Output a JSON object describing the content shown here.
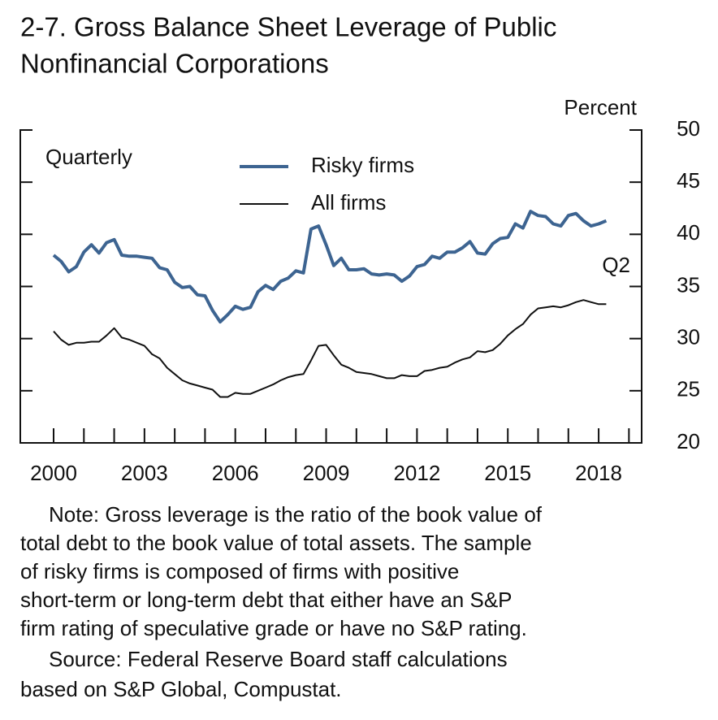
{
  "chart_data": {
    "type": "line",
    "title": [
      "2-7. Gross Balance Sheet Leverage of Public",
      "Nonfinancial Corporations"
    ],
    "y_axis_label": "Percent",
    "annotations": {
      "frequency": "Quarterly",
      "last_point": "Q2"
    },
    "legend": "upper center",
    "x": [
      2000,
      2000.25,
      2000.5,
      2000.75,
      2001,
      2001.25,
      2001.5,
      2001.75,
      2002,
      2002.25,
      2002.5,
      2002.75,
      2003,
      2003.25,
      2003.5,
      2003.75,
      2004,
      2004.25,
      2004.5,
      2004.75,
      2005,
      2005.25,
      2005.5,
      2005.75,
      2006,
      2006.25,
      2006.5,
      2006.75,
      2007,
      2007.25,
      2007.5,
      2007.75,
      2008,
      2008.25,
      2008.5,
      2008.75,
      2009,
      2009.25,
      2009.5,
      2009.75,
      2010,
      2010.25,
      2010.5,
      2010.75,
      2011,
      2011.25,
      2011.5,
      2011.75,
      2012,
      2012.25,
      2012.5,
      2012.75,
      2013,
      2013.25,
      2013.5,
      2013.75,
      2014,
      2014.25,
      2014.5,
      2014.75,
      2015,
      2015.25,
      2015.5,
      2015.75,
      2016,
      2016.25,
      2016.5,
      2016.75,
      2017,
      2017.25,
      2017.5,
      2017.75,
      2018,
      2018.25
    ],
    "series": [
      {
        "name": "Risky firms",
        "color": "#3d6491",
        "width": 4,
        "values": [
          38.0,
          37.4,
          36.4,
          36.9,
          38.3,
          39.0,
          38.2,
          39.2,
          39.5,
          38.0,
          37.9,
          37.9,
          37.8,
          37.7,
          36.8,
          36.6,
          35.4,
          34.9,
          35.0,
          34.2,
          34.1,
          32.7,
          31.6,
          32.3,
          33.1,
          32.8,
          33.0,
          34.5,
          35.1,
          34.7,
          35.5,
          35.8,
          36.5,
          36.3,
          40.5,
          40.8,
          39.0,
          37.0,
          37.7,
          36.6,
          36.6,
          36.7,
          36.2,
          36.1,
          36.2,
          36.1,
          35.5,
          36.0,
          36.9,
          37.1,
          37.9,
          37.7,
          38.3,
          38.3,
          38.7,
          39.3,
          38.2,
          38.1,
          39.1,
          39.6,
          39.7,
          41.0,
          40.6,
          42.2,
          41.8,
          41.7,
          41.0,
          40.8,
          41.8,
          42.0,
          41.3,
          40.8,
          41.0,
          41.3
        ]
      },
      {
        "name": "All firms",
        "color": "#111111",
        "width": 2,
        "values": [
          30.7,
          29.9,
          29.4,
          29.6,
          29.6,
          29.7,
          29.7,
          30.3,
          31.0,
          30.1,
          29.9,
          29.6,
          29.3,
          28.5,
          28.1,
          27.2,
          26.6,
          26.0,
          25.7,
          25.5,
          25.3,
          25.1,
          24.4,
          24.4,
          24.8,
          24.7,
          24.7,
          25.0,
          25.3,
          25.6,
          26.0,
          26.3,
          26.5,
          26.6,
          27.9,
          29.3,
          29.4,
          28.4,
          27.5,
          27.2,
          26.8,
          26.7,
          26.6,
          26.4,
          26.2,
          26.2,
          26.5,
          26.4,
          26.4,
          26.9,
          27.0,
          27.2,
          27.3,
          27.7,
          28.0,
          28.2,
          28.8,
          28.7,
          28.9,
          29.5,
          30.3,
          30.9,
          31.4,
          32.3,
          32.9,
          33.0,
          33.1,
          33.0,
          33.2,
          33.5,
          33.7,
          33.5,
          33.3,
          33.3
        ]
      }
    ],
    "xlim": [
      1998.9,
      2019.42
    ],
    "xticks": [
      2000,
      2003,
      2006,
      2009,
      2012,
      2015,
      2018
    ],
    "xminorticks": [
      2000,
      2001,
      2002,
      2003,
      2004,
      2005,
      2006,
      2007,
      2008,
      2009,
      2010,
      2011,
      2012,
      2013,
      2014,
      2015,
      2016,
      2017,
      2018,
      2019
    ],
    "ylim": [
      20,
      50
    ],
    "yticks": [
      20,
      25,
      30,
      35,
      40,
      45,
      50
    ],
    "note": [
      "Note: Gross leverage is the ratio of the book value of",
      "total debt to the book value of total assets. The sample",
      "of risky firms is composed of firms with positive",
      "short-term or long-term  debt that either have an S&P",
      "firm rating of speculative grade or have no S&P rating."
    ],
    "source": [
      "Source: Federal Reserve Board staff calculations",
      "based on S&P Global, Compustat."
    ]
  }
}
